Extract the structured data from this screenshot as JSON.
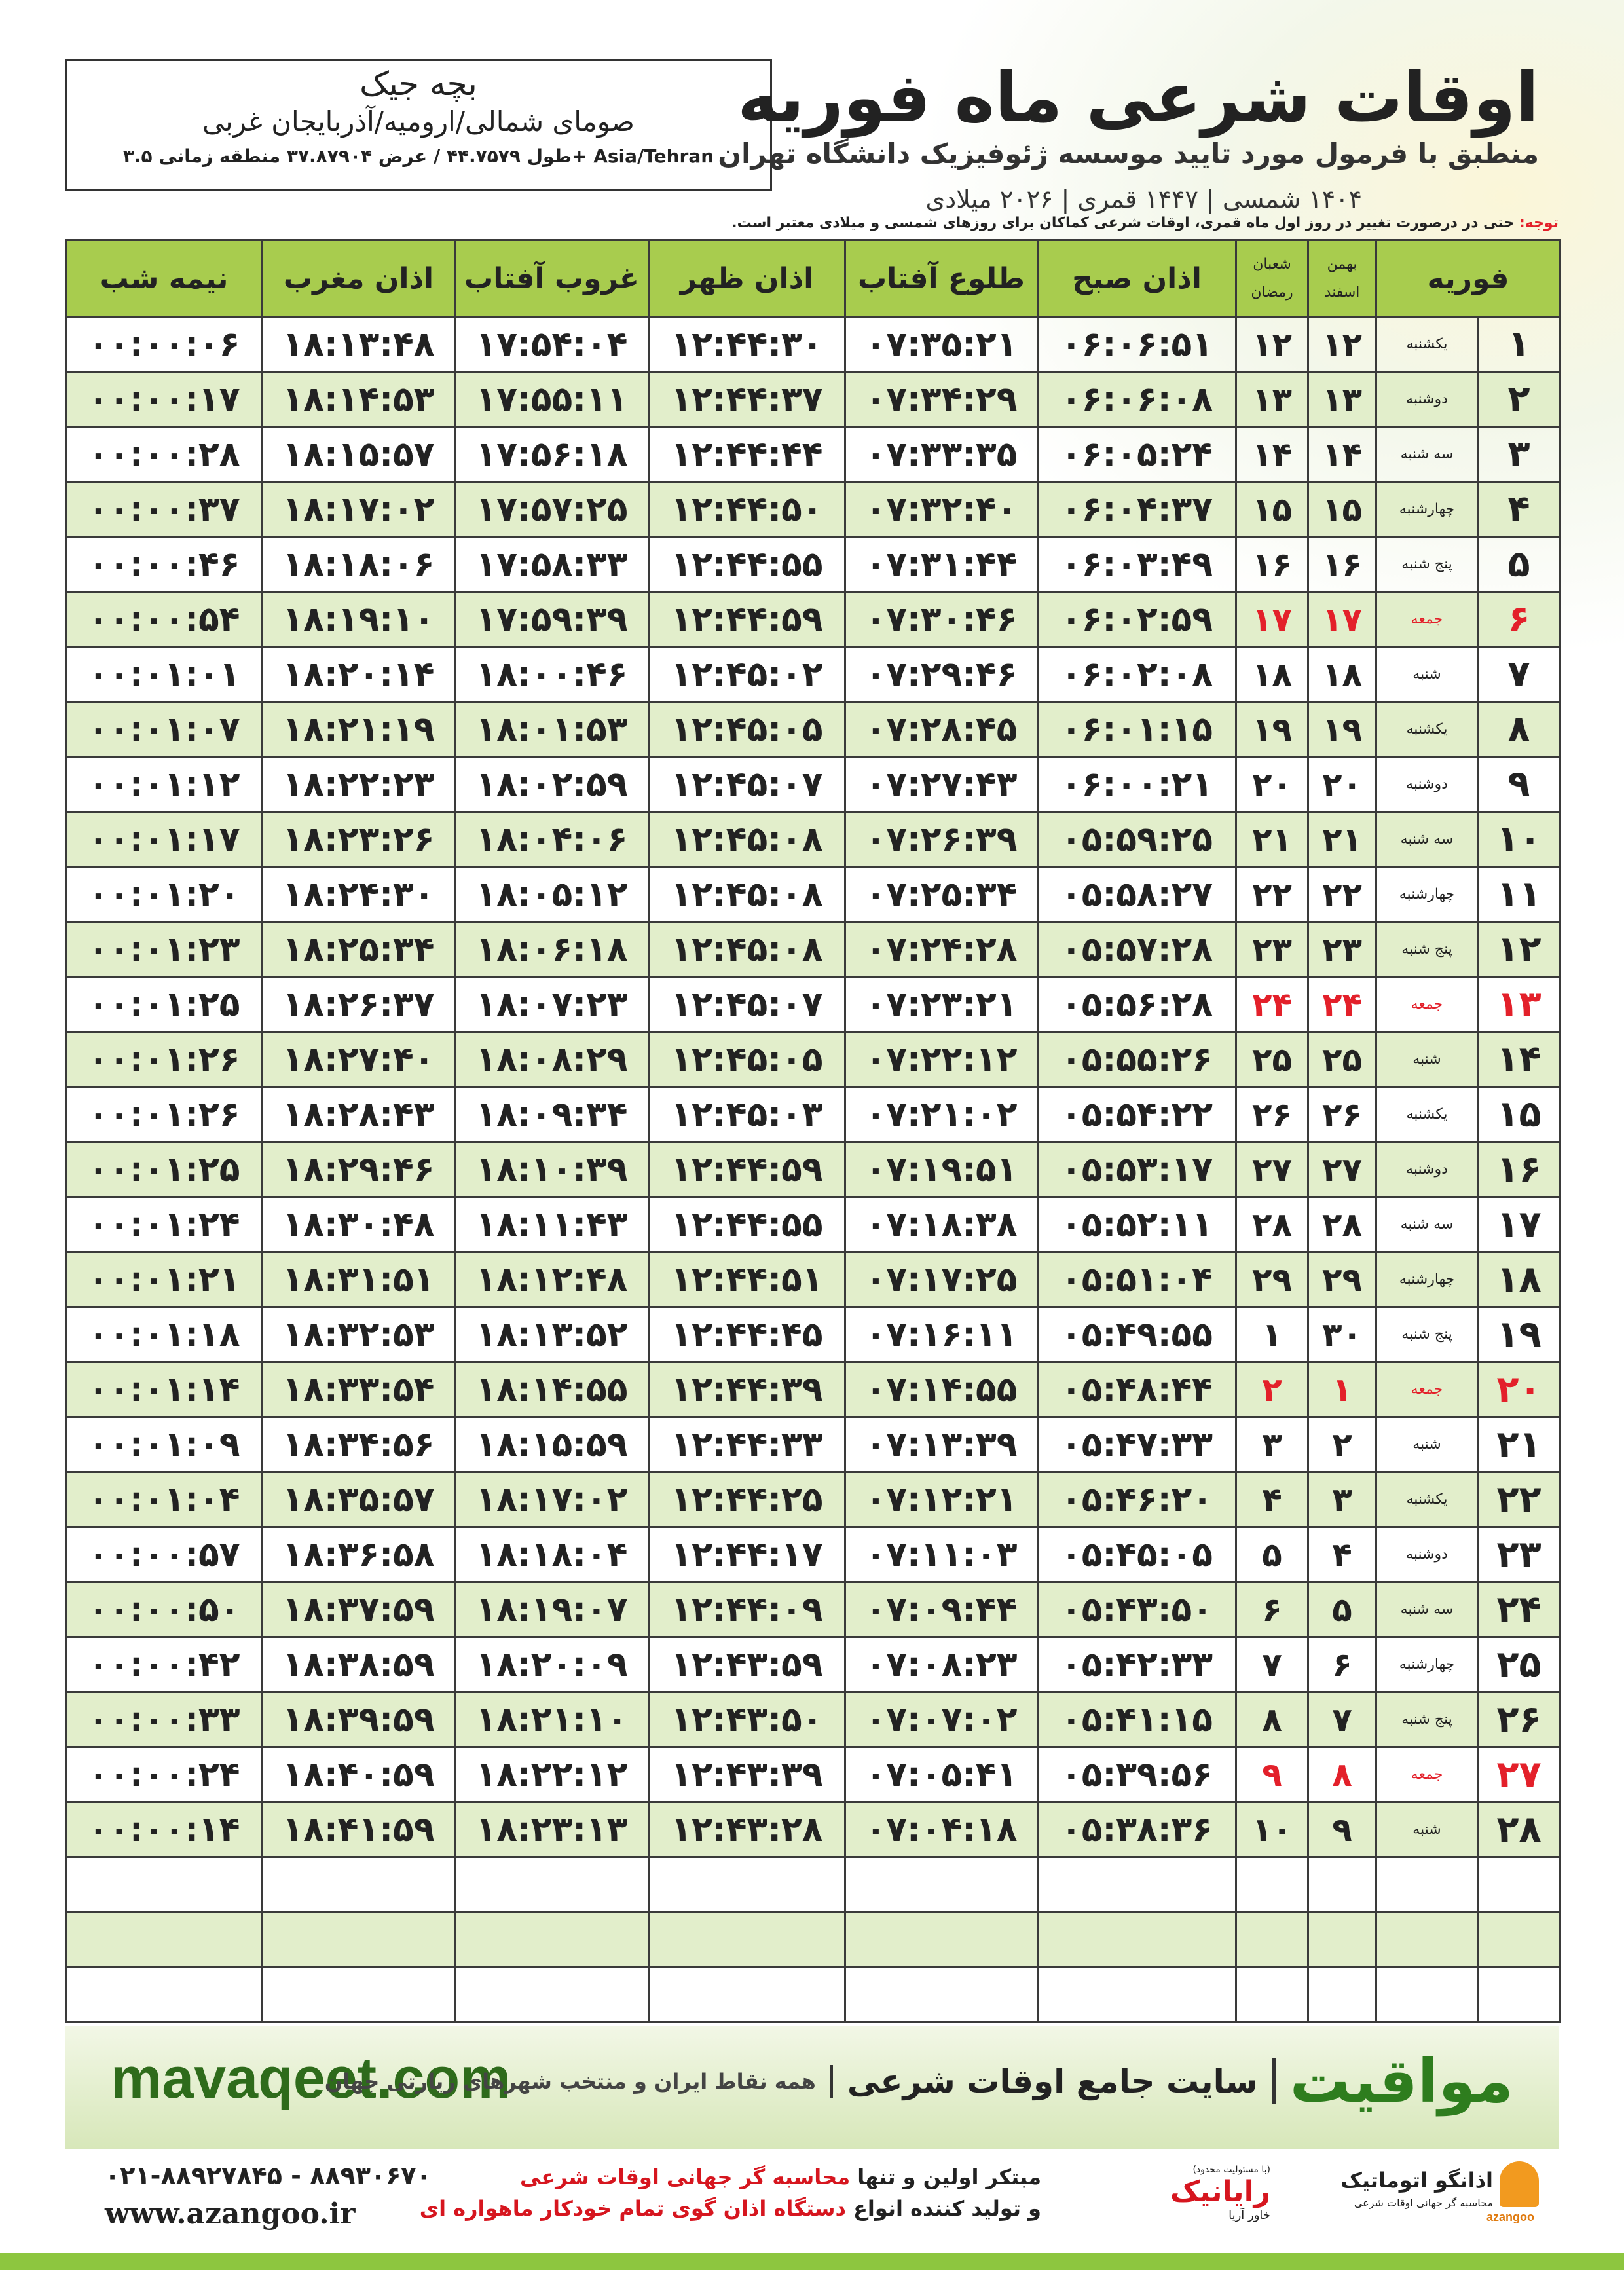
{
  "header": {
    "title": "اوقات شرعی ماه فوریه",
    "subtitle": "منطبق با فرمول مورد تایید موسسه ژئوفیزیک دانشگاه تهران",
    "calendar": "۱۴۰۴ شمسی | ۱۴۴۷ قمری | ۲۰۲۶ میلادی"
  },
  "location": {
    "name": "بچه جیک",
    "region": "صومای شمالی/ارومیه/آذربایجان غربی",
    "coords": "طول ۴۴.۷۵۷۹ / عرض ۳۷.۸۷۹۰۴ منطقه زمانی ۳.۵+ Asia/Tehran"
  },
  "note": {
    "label": "توجه:",
    "text": "حتی در درصورت تغییر در روز اول ماه قمری، اوقات شرعی کماکان برای روزهای شمسی و میلادی معتبر است."
  },
  "table": {
    "day_header": "فوریه",
    "solar_months": [
      "بهمن",
      "اسفند"
    ],
    "lunar_months": [
      "شعبان",
      "رمضان"
    ],
    "time_headers": [
      "اذان صبح",
      "طلوع آفتاب",
      "اذان ظهر",
      "غروب آفتاب",
      "اذان مغرب",
      "نیمه شب"
    ],
    "highlight_color": "#e3202a",
    "rows": [
      {
        "cells": [
          "۱",
          "یکشنبه",
          "۱۲",
          "۱۲",
          "۰۶:۰۶:۵۱",
          "۰۷:۳۵:۲۱",
          "۱۲:۴۴:۳۰",
          "۱۷:۵۴:۰۴",
          "۱۸:۱۳:۴۸",
          "۰۰:۰۰:۰۶"
        ]
      },
      {
        "cells": [
          "۲",
          "دوشنبه",
          "۱۳",
          "۱۳",
          "۰۶:۰۶:۰۸",
          "۰۷:۳۴:۲۹",
          "۱۲:۴۴:۳۷",
          "۱۷:۵۵:۱۱",
          "۱۸:۱۴:۵۳",
          "۰۰:۰۰:۱۷"
        ]
      },
      {
        "cells": [
          "۳",
          "سه شنبه",
          "۱۴",
          "۱۴",
          "۰۶:۰۵:۲۴",
          "۰۷:۳۳:۳۵",
          "۱۲:۴۴:۴۴",
          "۱۷:۵۶:۱۸",
          "۱۸:۱۵:۵۷",
          "۰۰:۰۰:۲۸"
        ]
      },
      {
        "cells": [
          "۴",
          "چهارشنبه",
          "۱۵",
          "۱۵",
          "۰۶:۰۴:۳۷",
          "۰۷:۳۲:۴۰",
          "۱۲:۴۴:۵۰",
          "۱۷:۵۷:۲۵",
          "۱۸:۱۷:۰۲",
          "۰۰:۰۰:۳۷"
        ]
      },
      {
        "cells": [
          "۵",
          "پنج شنبه",
          "۱۶",
          "۱۶",
          "۰۶:۰۳:۴۹",
          "۰۷:۳۱:۴۴",
          "۱۲:۴۴:۵۵",
          "۱۷:۵۸:۳۳",
          "۱۸:۱۸:۰۶",
          "۰۰:۰۰:۴۶"
        ]
      },
      {
        "cells": [
          "۶",
          "جمعه",
          "۱۷",
          "۱۷",
          "۰۶:۰۲:۵۹",
          "۰۷:۳۰:۴۶",
          "۱۲:۴۴:۵۹",
          "۱۷:۵۹:۳۹",
          "۱۸:۱۹:۱۰",
          "۰۰:۰۰:۵۴"
        ],
        "holiday": true
      },
      {
        "cells": [
          "۷",
          "شنبه",
          "۱۸",
          "۱۸",
          "۰۶:۰۲:۰۸",
          "۰۷:۲۹:۴۶",
          "۱۲:۴۵:۰۲",
          "۱۸:۰۰:۴۶",
          "۱۸:۲۰:۱۴",
          "۰۰:۰۱:۰۱"
        ]
      },
      {
        "cells": [
          "۸",
          "یکشنبه",
          "۱۹",
          "۱۹",
          "۰۶:۰۱:۱۵",
          "۰۷:۲۸:۴۵",
          "۱۲:۴۵:۰۵",
          "۱۸:۰۱:۵۳",
          "۱۸:۲۱:۱۹",
          "۰۰:۰۱:۰۷"
        ]
      },
      {
        "cells": [
          "۹",
          "دوشنبه",
          "۲۰",
          "۲۰",
          "۰۶:۰۰:۲۱",
          "۰۷:۲۷:۴۳",
          "۱۲:۴۵:۰۷",
          "۱۸:۰۲:۵۹",
          "۱۸:۲۲:۲۳",
          "۰۰:۰۱:۱۲"
        ]
      },
      {
        "cells": [
          "۱۰",
          "سه شنبه",
          "۲۱",
          "۲۱",
          "۰۵:۵۹:۲۵",
          "۰۷:۲۶:۳۹",
          "۱۲:۴۵:۰۸",
          "۱۸:۰۴:۰۶",
          "۱۸:۲۳:۲۶",
          "۰۰:۰۱:۱۷"
        ]
      },
      {
        "cells": [
          "۱۱",
          "چهارشنبه",
          "۲۲",
          "۲۲",
          "۰۵:۵۸:۲۷",
          "۰۷:۲۵:۳۴",
          "۱۲:۴۵:۰۸",
          "۱۸:۰۵:۱۲",
          "۱۸:۲۴:۳۰",
          "۰۰:۰۱:۲۰"
        ]
      },
      {
        "cells": [
          "۱۲",
          "پنج شنبه",
          "۲۳",
          "۲۳",
          "۰۵:۵۷:۲۸",
          "۰۷:۲۴:۲۸",
          "۱۲:۴۵:۰۸",
          "۱۸:۰۶:۱۸",
          "۱۸:۲۵:۳۴",
          "۰۰:۰۱:۲۳"
        ]
      },
      {
        "cells": [
          "۱۳",
          "جمعه",
          "۲۴",
          "۲۴",
          "۰۵:۵۶:۲۸",
          "۰۷:۲۳:۲۱",
          "۱۲:۴۵:۰۷",
          "۱۸:۰۷:۲۳",
          "۱۸:۲۶:۳۷",
          "۰۰:۰۱:۲۵"
        ],
        "holiday": true
      },
      {
        "cells": [
          "۱۴",
          "شنبه",
          "۲۵",
          "۲۵",
          "۰۵:۵۵:۲۶",
          "۰۷:۲۲:۱۲",
          "۱۲:۴۵:۰۵",
          "۱۸:۰۸:۲۹",
          "۱۸:۲۷:۴۰",
          "۰۰:۰۱:۲۶"
        ]
      },
      {
        "cells": [
          "۱۵",
          "یکشنبه",
          "۲۶",
          "۲۶",
          "۰۵:۵۴:۲۲",
          "۰۷:۲۱:۰۲",
          "۱۲:۴۵:۰۳",
          "۱۸:۰۹:۳۴",
          "۱۸:۲۸:۴۳",
          "۰۰:۰۱:۲۶"
        ]
      },
      {
        "cells": [
          "۱۶",
          "دوشنبه",
          "۲۷",
          "۲۷",
          "۰۵:۵۳:۱۷",
          "۰۷:۱۹:۵۱",
          "۱۲:۴۴:۵۹",
          "۱۸:۱۰:۳۹",
          "۱۸:۲۹:۴۶",
          "۰۰:۰۱:۲۵"
        ]
      },
      {
        "cells": [
          "۱۷",
          "سه شنبه",
          "۲۸",
          "۲۸",
          "۰۵:۵۲:۱۱",
          "۰۷:۱۸:۳۸",
          "۱۲:۴۴:۵۵",
          "۱۸:۱۱:۴۳",
          "۱۸:۳۰:۴۸",
          "۰۰:۰۱:۲۴"
        ]
      },
      {
        "cells": [
          "۱۸",
          "چهارشنبه",
          "۲۹",
          "۲۹",
          "۰۵:۵۱:۰۴",
          "۰۷:۱۷:۲۵",
          "۱۲:۴۴:۵۱",
          "۱۸:۱۲:۴۸",
          "۱۸:۳۱:۵۱",
          "۰۰:۰۱:۲۱"
        ]
      },
      {
        "cells": [
          "۱۹",
          "پنج شنبه",
          "۳۰",
          "۱",
          "۰۵:۴۹:۵۵",
          "۰۷:۱۶:۱۱",
          "۱۲:۴۴:۴۵",
          "۱۸:۱۳:۵۲",
          "۱۸:۳۲:۵۳",
          "۰۰:۰۱:۱۸"
        ]
      },
      {
        "cells": [
          "۲۰",
          "جمعه",
          "۱",
          "۲",
          "۰۵:۴۸:۴۴",
          "۰۷:۱۴:۵۵",
          "۱۲:۴۴:۳۹",
          "۱۸:۱۴:۵۵",
          "۱۸:۳۳:۵۴",
          "۰۰:۰۱:۱۴"
        ],
        "holiday": true
      },
      {
        "cells": [
          "۲۱",
          "شنبه",
          "۲",
          "۳",
          "۰۵:۴۷:۳۳",
          "۰۷:۱۳:۳۹",
          "۱۲:۴۴:۳۳",
          "۱۸:۱۵:۵۹",
          "۱۸:۳۴:۵۶",
          "۰۰:۰۱:۰۹"
        ]
      },
      {
        "cells": [
          "۲۲",
          "یکشنبه",
          "۳",
          "۴",
          "۰۵:۴۶:۲۰",
          "۰۷:۱۲:۲۱",
          "۱۲:۴۴:۲۵",
          "۱۸:۱۷:۰۲",
          "۱۸:۳۵:۵۷",
          "۰۰:۰۱:۰۴"
        ]
      },
      {
        "cells": [
          "۲۳",
          "دوشنبه",
          "۴",
          "۵",
          "۰۵:۴۵:۰۵",
          "۰۷:۱۱:۰۳",
          "۱۲:۴۴:۱۷",
          "۱۸:۱۸:۰۴",
          "۱۸:۳۶:۵۸",
          "۰۰:۰۰:۵۷"
        ]
      },
      {
        "cells": [
          "۲۴",
          "سه شنبه",
          "۵",
          "۶",
          "۰۵:۴۳:۵۰",
          "۰۷:۰۹:۴۴",
          "۱۲:۴۴:۰۹",
          "۱۸:۱۹:۰۷",
          "۱۸:۳۷:۵۹",
          "۰۰:۰۰:۵۰"
        ]
      },
      {
        "cells": [
          "۲۵",
          "چهارشنبه",
          "۶",
          "۷",
          "۰۵:۴۲:۳۳",
          "۰۷:۰۸:۲۳",
          "۱۲:۴۳:۵۹",
          "۱۸:۲۰:۰۹",
          "۱۸:۳۸:۵۹",
          "۰۰:۰۰:۴۲"
        ]
      },
      {
        "cells": [
          "۲۶",
          "پنج شنبه",
          "۷",
          "۸",
          "۰۵:۴۱:۱۵",
          "۰۷:۰۷:۰۲",
          "۱۲:۴۳:۵۰",
          "۱۸:۲۱:۱۰",
          "۱۸:۳۹:۵۹",
          "۰۰:۰۰:۳۳"
        ]
      },
      {
        "cells": [
          "۲۷",
          "جمعه",
          "۸",
          "۹",
          "۰۵:۳۹:۵۶",
          "۰۷:۰۵:۴۱",
          "۱۲:۴۳:۳۹",
          "۱۸:۲۲:۱۲",
          "۱۸:۴۰:۵۹",
          "۰۰:۰۰:۲۴"
        ],
        "holiday": true
      },
      {
        "cells": [
          "۲۸",
          "شنبه",
          "۹",
          "۱۰",
          "۰۵:۳۸:۳۶",
          "۰۷:۰۴:۱۸",
          "۱۲:۴۳:۲۸",
          "۱۸:۲۳:۱۳",
          "۱۸:۴۱:۵۹",
          "۰۰:۰۰:۱۴"
        ]
      }
    ]
  },
  "banner": {
    "brand": "مواقیت",
    "tagline": "سایت جامع اوقات شرعی",
    "coverage": "همه نقاط ایران و منتخب شهرهای زیارتی جهان",
    "url": "mavaqeet.com"
  },
  "footer": {
    "phone": "۰۲۱-۸۸۹۲۷۸۴۵ - ۸۸۹۳۰۶۷۰",
    "website": "www.azangoo.ir",
    "line1": {
      "text": "مبتکر اولین و تنها",
      "highlight": "محاسبه گر جهانی اوقات شرعی"
    },
    "line2": {
      "text": "و تولید کننده انواع",
      "highlight": "دستگاه اذان گوی تمام خودکار ماهواره ای"
    },
    "logo1": {
      "name": "رایانیک",
      "sub": "خاور آریا",
      "note": "(با مسئولیت محدود)"
    },
    "logo2": {
      "name": "اذانگو اتوماتیک",
      "sub": "محاسبه گر جهانی اوقات شرعی",
      "latin": "azangoo"
    }
  }
}
